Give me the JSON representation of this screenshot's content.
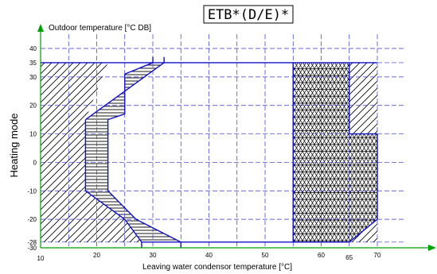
{
  "chart_data": {
    "type": "area",
    "title": "ETB*(D/E)*",
    "side_label": "Heating mode",
    "xlabel": "Leaving water condensor temperature [°C]",
    "ylabel": "Outdoor temperature [°C DB]",
    "xlim": [
      10,
      75
    ],
    "ylim": [
      -30,
      45
    ],
    "x_ticks": [
      10,
      20,
      30,
      40,
      50,
      60,
      65,
      70
    ],
    "y_ticks": [
      40,
      35,
      30,
      20,
      10,
      0,
      -10,
      -20,
      -28,
      -30
    ],
    "colors": {
      "outline": "#1010c8",
      "grid": "#3333cc",
      "hatch": "#000000",
      "axis": "#00a000"
    },
    "regions": [
      {
        "role": "operating range",
        "outline": [
          [
            18,
            -10
          ],
          [
            18,
            15
          ],
          [
            25,
            25
          ],
          [
            32,
            35
          ],
          [
            65,
            35
          ],
          [
            65,
            10
          ],
          [
            70,
            10
          ],
          [
            70,
            -20
          ],
          [
            65,
            -28
          ],
          [
            35,
            -28
          ],
          [
            35,
            -30
          ],
          [
            28,
            -28
          ],
          [
            25,
            -20
          ],
          [
            18,
            -10
          ]
        ]
      },
      {
        "role": "horizontally hatched area",
        "outline": [
          [
            18,
            -10
          ],
          [
            18,
            15
          ],
          [
            25,
            25
          ],
          [
            32,
            35
          ],
          [
            30,
            35
          ],
          [
            25,
            31
          ],
          [
            25,
            17
          ],
          [
            22,
            15
          ],
          [
            22,
            -10
          ],
          [
            27,
            -20
          ],
          [
            35,
            -28
          ],
          [
            28,
            -28
          ],
          [
            25,
            -20
          ]
        ]
      },
      {
        "role": "triangular lattice area",
        "outline": [
          [
            55,
            35
          ],
          [
            65,
            35
          ],
          [
            65,
            10
          ],
          [
            70,
            10
          ],
          [
            70,
            -20
          ],
          [
            65,
            -28
          ],
          [
            55,
            -28
          ]
        ]
      },
      {
        "role": "diagonal hatched area left",
        "outline": [
          [
            10,
            35
          ],
          [
            10,
            -28
          ],
          [
            18,
            -28
          ],
          [
            18,
            15
          ],
          [
            22,
            35
          ]
        ]
      },
      {
        "role": "diagonal hatched area left bottom",
        "outline": [
          [
            10,
            -28
          ],
          [
            35,
            -28
          ],
          [
            28,
            -28
          ],
          [
            25,
            -20
          ],
          [
            18,
            -10
          ],
          [
            18,
            -28
          ]
        ]
      },
      {
        "role": "diagonal hatched area right",
        "outline": [
          [
            65,
            35
          ],
          [
            70,
            35
          ],
          [
            70,
            10
          ],
          [
            65,
            10
          ]
        ]
      },
      {
        "role": "diagonal hatched area bottom right",
        "outline": [
          [
            70,
            -20
          ],
          [
            70,
            -28
          ],
          [
            65,
            -28
          ]
        ]
      }
    ]
  }
}
